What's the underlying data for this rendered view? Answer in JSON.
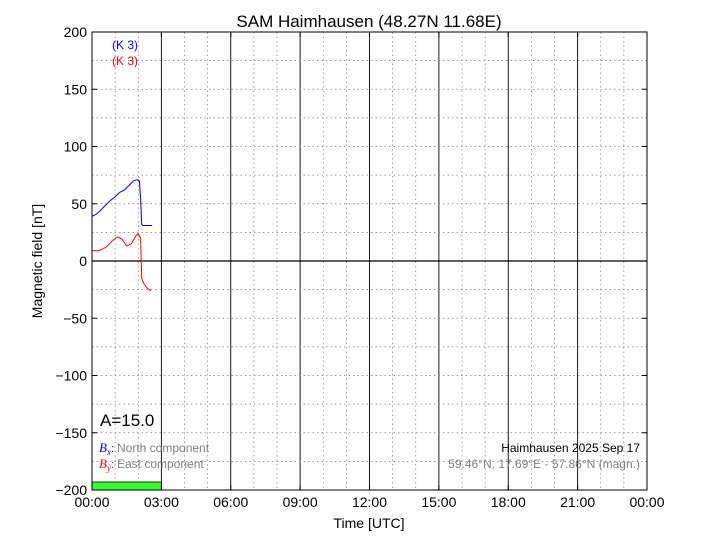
{
  "chart_data": {
    "type": "line",
    "title": "SAM Haimhausen (48.27N 11.68E)",
    "xlabel": "Time [UTC]",
    "ylabel": "Magnetic field [nT]",
    "xlim": [
      0,
      24
    ],
    "ylim": [
      -200,
      200
    ],
    "x_ticks": [
      {
        "v": 0,
        "label": "00:00"
      },
      {
        "v": 3,
        "label": "03:00"
      },
      {
        "v": 6,
        "label": "06:00"
      },
      {
        "v": 9,
        "label": "09:00"
      },
      {
        "v": 12,
        "label": "12:00"
      },
      {
        "v": 15,
        "label": "15:00"
      },
      {
        "v": 18,
        "label": "18:00"
      },
      {
        "v": 21,
        "label": "21:00"
      },
      {
        "v": 24,
        "label": "00:00"
      }
    ],
    "y_ticks": [
      {
        "v": 200,
        "label": "200"
      },
      {
        "v": 150,
        "label": "150"
      },
      {
        "v": 100,
        "label": "100"
      },
      {
        "v": 50,
        "label": "50"
      },
      {
        "v": 0,
        "label": "0"
      },
      {
        "v": -50,
        "label": "−50"
      },
      {
        "v": -100,
        "label": "−100"
      },
      {
        "v": -150,
        "label": "−150"
      },
      {
        "v": -200,
        "label": "−200"
      }
    ],
    "grid": true,
    "series": [
      {
        "name": "North component",
        "symbol": "B",
        "subscript": "x",
        "color": "#0000ff",
        "k_label": "(K 3)",
        "x": [
          0.0,
          0.2,
          0.4,
          0.6,
          0.8,
          1.0,
          1.2,
          1.4,
          1.6,
          1.8,
          1.95,
          2.05,
          2.1,
          2.15,
          2.2,
          2.4,
          2.6
        ],
        "y": [
          39,
          41,
          45,
          49,
          53,
          56,
          60,
          62,
          66,
          70,
          71,
          70,
          55,
          32,
          31,
          31,
          31
        ]
      },
      {
        "name": "East component",
        "symbol": "B",
        "subscript": "y",
        "color": "#ff0000",
        "k_label": "(K 3)",
        "x": [
          0.0,
          0.3,
          0.6,
          0.9,
          1.1,
          1.3,
          1.5,
          1.7,
          1.9,
          2.0,
          2.1,
          2.15,
          2.25,
          2.4,
          2.55
        ],
        "y": [
          9,
          9,
          12,
          18,
          21,
          19,
          13,
          15,
          22,
          24,
          20,
          -15,
          -20,
          -24,
          -26
        ]
      }
    ],
    "activity_bars": [
      {
        "x0": 0.0,
        "x1": 3.0,
        "color": "#33ff33"
      }
    ],
    "annotations": {
      "a_index": "A=15.0",
      "station_date": "Haimhausen 2025 Sep 17",
      "coordinates": "59.46°N, 17.69°E - 57.86°N (magn.)"
    }
  }
}
